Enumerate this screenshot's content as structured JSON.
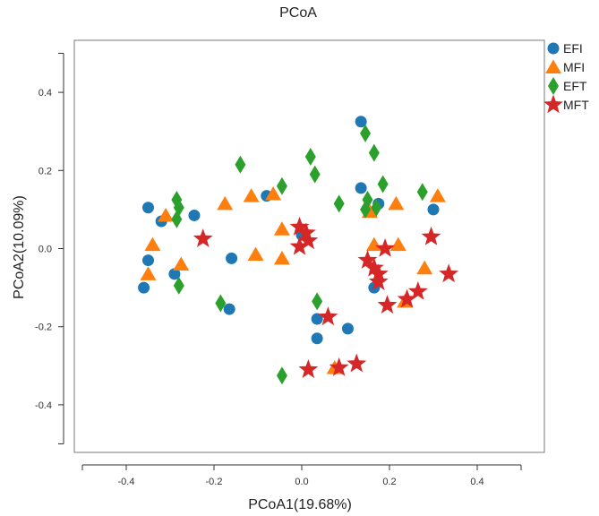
{
  "chart_data": {
    "type": "scatter",
    "title": "PCoA",
    "xlabel": "PCoA1(19.68%)",
    "ylabel": "PCoA2(10.09%)",
    "xlim": [
      -0.5,
      0.5
    ],
    "ylim": [
      -0.5,
      0.5
    ],
    "x_ticks": [
      -0.4,
      -0.2,
      0.0,
      0.2,
      0.4
    ],
    "x_tick_labels": [
      "-0.4",
      "-0.2",
      "0.0",
      "0.2",
      "0.4"
    ],
    "y_ticks": [
      -0.4,
      -0.2,
      0.0,
      0.2,
      0.4
    ],
    "y_tick_labels": [
      "-0.4",
      "-0.2",
      "0.0",
      "0.2",
      "0.4"
    ],
    "grid": false,
    "legend_position": "top-right-outside",
    "series": [
      {
        "name": "EFI",
        "marker": "circle",
        "color": "#1f77b4",
        "points": [
          [
            -0.35,
            0.105
          ],
          [
            -0.32,
            0.07
          ],
          [
            -0.245,
            0.085
          ],
          [
            -0.35,
            -0.03
          ],
          [
            -0.36,
            -0.1
          ],
          [
            -0.29,
            -0.065
          ],
          [
            -0.16,
            -0.025
          ],
          [
            -0.165,
            -0.155
          ],
          [
            -0.08,
            0.135
          ],
          [
            0.135,
            0.325
          ],
          [
            0.135,
            0.155
          ],
          [
            0.175,
            0.115
          ],
          [
            0.3,
            0.1
          ],
          [
            0.035,
            -0.18
          ],
          [
            0.035,
            -0.23
          ],
          [
            0.105,
            -0.205
          ],
          [
            0.165,
            -0.1
          ],
          [
            0.0,
            0.035
          ]
        ]
      },
      {
        "name": "MFI",
        "marker": "triangle",
        "color": "#ff7f0e",
        "points": [
          [
            -0.31,
            0.085
          ],
          [
            -0.34,
            0.01
          ],
          [
            -0.35,
            -0.065
          ],
          [
            -0.275,
            -0.04
          ],
          [
            -0.175,
            0.115
          ],
          [
            -0.115,
            0.135
          ],
          [
            -0.065,
            0.14
          ],
          [
            -0.105,
            -0.015
          ],
          [
            -0.045,
            0.05
          ],
          [
            -0.045,
            -0.025
          ],
          [
            0.155,
            0.095
          ],
          [
            0.165,
            0.01
          ],
          [
            0.215,
            0.115
          ],
          [
            0.22,
            0.01
          ],
          [
            0.31,
            0.135
          ],
          [
            0.28,
            -0.05
          ],
          [
            0.235,
            -0.135
          ],
          [
            0.075,
            -0.305
          ]
        ]
      },
      {
        "name": "EFT",
        "marker": "diamond",
        "color": "#2ca02c",
        "points": [
          [
            -0.285,
            0.125
          ],
          [
            -0.28,
            0.105
          ],
          [
            -0.285,
            0.075
          ],
          [
            -0.28,
            -0.095
          ],
          [
            -0.14,
            0.215
          ],
          [
            -0.185,
            -0.14
          ],
          [
            -0.045,
            0.16
          ],
          [
            0.02,
            0.235
          ],
          [
            0.03,
            0.19
          ],
          [
            0.085,
            0.115
          ],
          [
            0.145,
            0.295
          ],
          [
            0.165,
            0.245
          ],
          [
            0.185,
            0.165
          ],
          [
            0.15,
            0.125
          ],
          [
            0.145,
            0.1
          ],
          [
            0.17,
            0.105
          ],
          [
            0.275,
            0.145
          ],
          [
            0.035,
            -0.135
          ],
          [
            -0.045,
            -0.325
          ]
        ]
      },
      {
        "name": "MFT",
        "marker": "star",
        "color": "#d62728",
        "points": [
          [
            -0.225,
            0.025
          ],
          [
            -0.005,
            0.055
          ],
          [
            0.01,
            0.04
          ],
          [
            0.015,
            0.02
          ],
          [
            -0.005,
            0.005
          ],
          [
            0.06,
            -0.175
          ],
          [
            0.015,
            -0.31
          ],
          [
            0.085,
            -0.305
          ],
          [
            0.125,
            -0.295
          ],
          [
            0.15,
            -0.03
          ],
          [
            0.165,
            -0.05
          ],
          [
            0.175,
            -0.065
          ],
          [
            0.175,
            -0.085
          ],
          [
            0.195,
            -0.145
          ],
          [
            0.19,
            0.0
          ],
          [
            0.24,
            -0.13
          ],
          [
            0.265,
            -0.11
          ],
          [
            0.295,
            0.03
          ],
          [
            0.335,
            -0.065
          ]
        ]
      }
    ]
  }
}
